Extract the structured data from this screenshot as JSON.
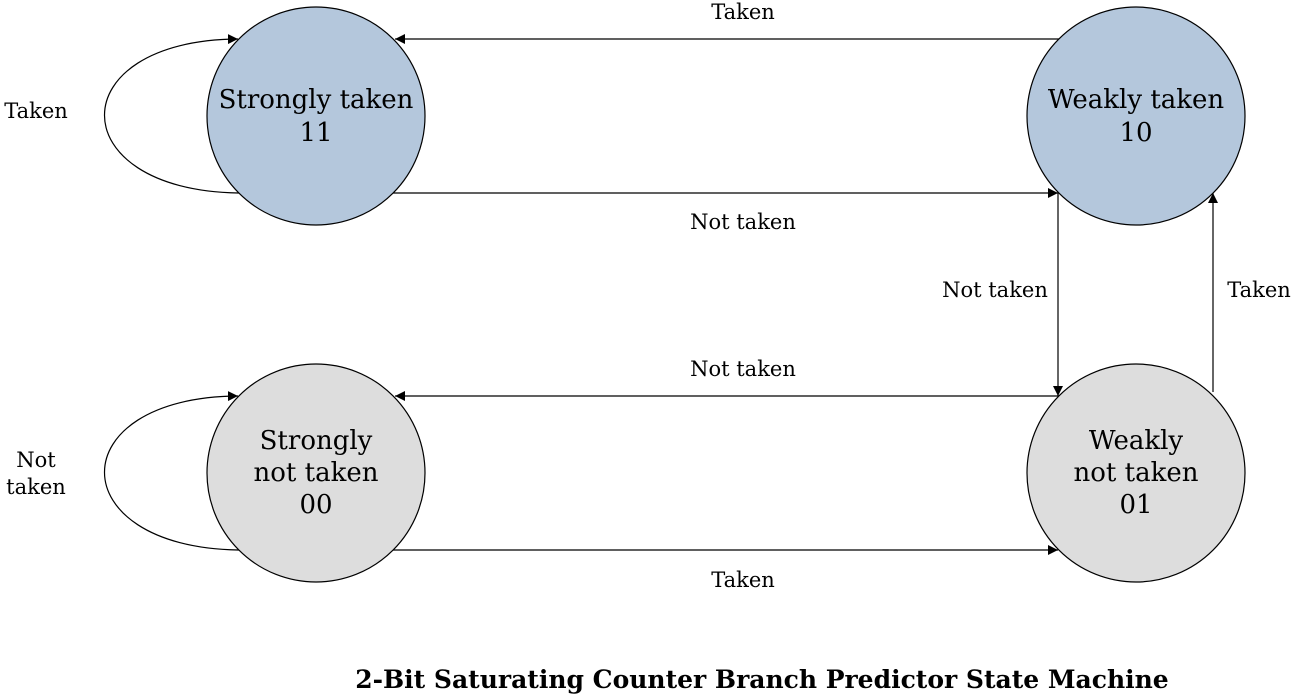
{
  "title": "2-Bit Saturating Counter Branch Predictor State Machine",
  "colors": {
    "taken_state_fill": "#b4c7dc",
    "not_taken_state_fill": "#dddddd",
    "stroke": "#000000"
  },
  "states": {
    "strongly_taken": {
      "line1": "Strongly taken",
      "line2": "11"
    },
    "weakly_taken": {
      "line1": "Weakly taken",
      "line2": "10"
    },
    "strongly_not_taken": {
      "line1": "Strongly",
      "line2": "not taken",
      "line3": "00"
    },
    "weakly_not_taken": {
      "line1": "Weakly",
      "line2": "not taken",
      "line3": "01"
    }
  },
  "transitions": {
    "st_self": "Taken",
    "wt_to_st": "Taken",
    "st_to_wt": "Not taken",
    "wt_to_wnt": "Not taken",
    "wnt_to_wt": "Taken",
    "wnt_to_snt": "Not taken",
    "snt_self_line1": "Not",
    "snt_self_line2": "taken",
    "snt_to_wnt": "Taken"
  }
}
